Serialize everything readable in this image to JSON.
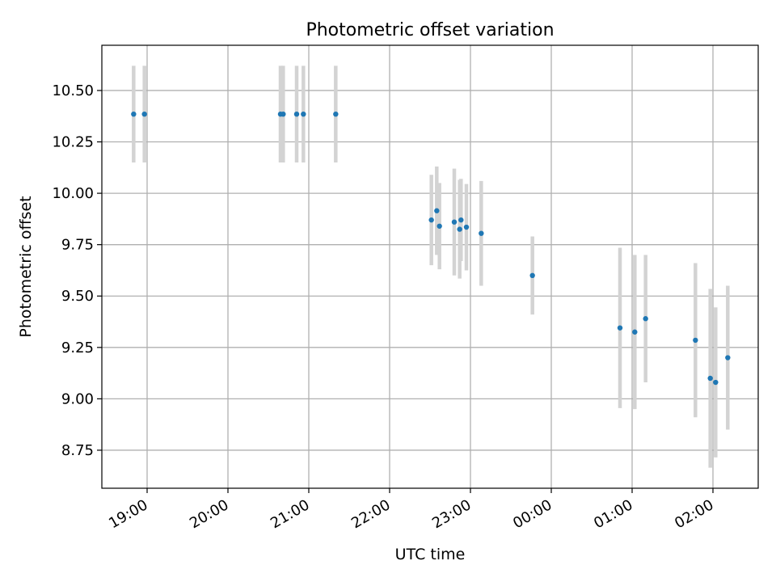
{
  "chart_data": {
    "type": "scatter",
    "title": "Photometric offset variation",
    "xlabel": "UTC time",
    "ylabel": "Photometric offset",
    "x_tick_labels": [
      "19:00",
      "20:00",
      "21:00",
      "22:00",
      "23:00",
      "00:00",
      "01:00",
      "02:00"
    ],
    "y_tick_labels": [
      "8.75",
      "9.00",
      "9.25",
      "9.50",
      "9.75",
      "10.00",
      "10.25",
      "10.50"
    ],
    "y_ticks": [
      8.75,
      9.0,
      9.25,
      9.5,
      9.75,
      10.0,
      10.25,
      10.5
    ],
    "x_ticks_hours": [
      19,
      20,
      21,
      22,
      23,
      24,
      25,
      26
    ],
    "xlim_hours": [
      18.44,
      26.56
    ],
    "ylim": [
      8.565,
      10.72
    ],
    "grid": true,
    "point_color": "#1f77b4",
    "errorbar_color": "#d3d3d3",
    "points": [
      {
        "t": "18:50",
        "y": 10.385,
        "err": 0.235
      },
      {
        "t": "18:58",
        "y": 10.385,
        "err": 0.235
      },
      {
        "t": "20:39",
        "y": 10.385,
        "err": 0.235
      },
      {
        "t": "20:41",
        "y": 10.385,
        "err": 0.235
      },
      {
        "t": "20:51",
        "y": 10.385,
        "err": 0.235
      },
      {
        "t": "20:56",
        "y": 10.385,
        "err": 0.235
      },
      {
        "t": "21:20",
        "y": 10.385,
        "err": 0.235
      },
      {
        "t": "22:31",
        "y": 9.87,
        "err": 0.22
      },
      {
        "t": "22:35",
        "y": 9.915,
        "err": 0.215
      },
      {
        "t": "22:37",
        "y": 9.84,
        "err": 0.21
      },
      {
        "t": "22:48",
        "y": 9.86,
        "err": 0.26
      },
      {
        "t": "22:52",
        "y": 9.825,
        "err": 0.24
      },
      {
        "t": "22:53",
        "y": 9.87,
        "err": 0.2
      },
      {
        "t": "22:57",
        "y": 9.835,
        "err": 0.21
      },
      {
        "t": "23:08",
        "y": 9.805,
        "err": 0.255
      },
      {
        "t": "23:46",
        "y": 9.6,
        "err": 0.19
      },
      {
        "t": "00:51",
        "y": 9.345,
        "err": 0.39
      },
      {
        "t": "01:02",
        "y": 9.325,
        "err": 0.375
      },
      {
        "t": "01:10",
        "y": 9.39,
        "err": 0.31
      },
      {
        "t": "01:47",
        "y": 9.285,
        "err": 0.375
      },
      {
        "t": "01:58",
        "y": 9.1,
        "err": 0.435
      },
      {
        "t": "02:02",
        "y": 9.08,
        "err": 0.365
      },
      {
        "t": "02:11",
        "y": 9.2,
        "err": 0.35
      }
    ]
  }
}
